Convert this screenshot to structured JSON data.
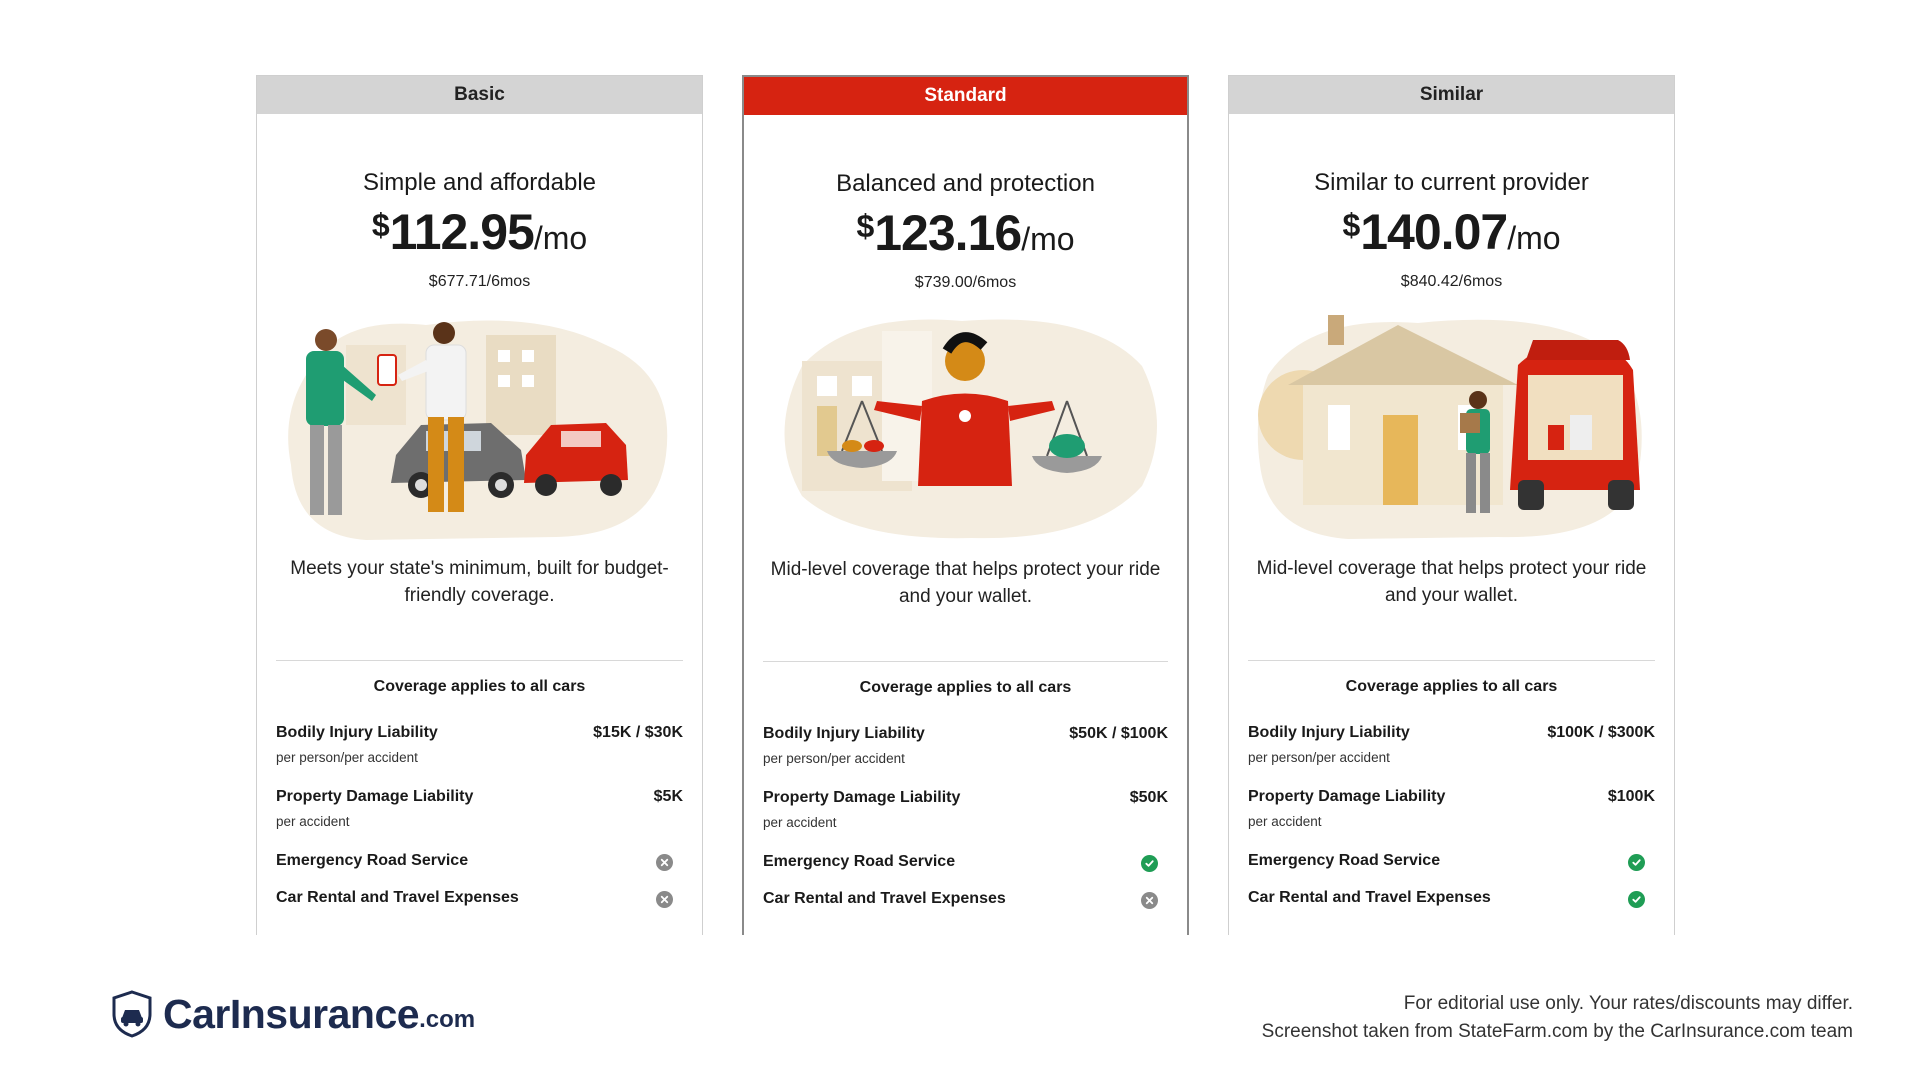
{
  "plans": [
    {
      "header": "Basic",
      "title": "Simple and affordable",
      "price_currency": "$",
      "price_amount": "112.95",
      "price_period": "/mo",
      "six_month": "$677.71/6mos",
      "illustration": "two-people-car-accident",
      "description": "Meets your state's minimum, built for budget-friendly coverage.",
      "coverage_heading": "Coverage applies to all cars",
      "coverages": [
        {
          "label": "Bodily Injury Liability",
          "sub": "per person/per accident",
          "value": "$15K / $30K"
        },
        {
          "label": "Property Damage Liability",
          "sub": "per accident",
          "value": "$5K"
        },
        {
          "label": "Emergency Road Service",
          "status": "not-included"
        },
        {
          "label": "Car Rental and Travel Expenses",
          "status": "not-included"
        }
      ]
    },
    {
      "header": "Standard",
      "title": "Balanced and protection",
      "price_currency": "$",
      "price_amount": "123.16",
      "price_period": "/mo",
      "six_month": "$739.00/6mos",
      "illustration": "person-with-balance-scales",
      "description": "Mid-level coverage that helps protect your ride and your wallet.",
      "coverage_heading": "Coverage applies to all cars",
      "coverages": [
        {
          "label": "Bodily Injury Liability",
          "sub": "per person/per accident",
          "value": "$50K / $100K"
        },
        {
          "label": "Property Damage Liability",
          "sub": "per accident",
          "value": "$50K"
        },
        {
          "label": "Emergency Road Service",
          "status": "included"
        },
        {
          "label": "Car Rental and Travel Expenses",
          "status": "not-included"
        }
      ]
    },
    {
      "header": "Similar",
      "title": "Similar to current provider",
      "price_currency": "$",
      "price_amount": "140.07",
      "price_period": "/mo",
      "six_month": "$840.42/6mos",
      "illustration": "house-and-suv-with-groceries",
      "description": "Mid-level coverage that helps protect your ride and your wallet.",
      "coverage_heading": "Coverage applies to all cars",
      "coverages": [
        {
          "label": "Bodily Injury Liability",
          "sub": "per person/per accident",
          "value": "$100K / $300K"
        },
        {
          "label": "Property Damage Liability",
          "sub": "per accident",
          "value": "$100K"
        },
        {
          "label": "Emergency Road Service",
          "status": "included"
        },
        {
          "label": "Car Rental and Travel Expenses",
          "status": "included"
        }
      ]
    }
  ],
  "footer": {
    "brand": "CarInsurance",
    "brand_tld": ".com",
    "logo_icon": "shield-car-icon",
    "note_line1": "For editorial use only. Your rates/discounts may differ.",
    "note_line2": "Screenshot taken from StateFarm.com by the CarInsurance.com team"
  },
  "colors": {
    "accent_red": "#d62311",
    "header_gray": "#d4d4d4",
    "included_green": "#1f9d55",
    "excluded_gray": "#8a8a8a",
    "brand_navy": "#1d2b4f"
  }
}
